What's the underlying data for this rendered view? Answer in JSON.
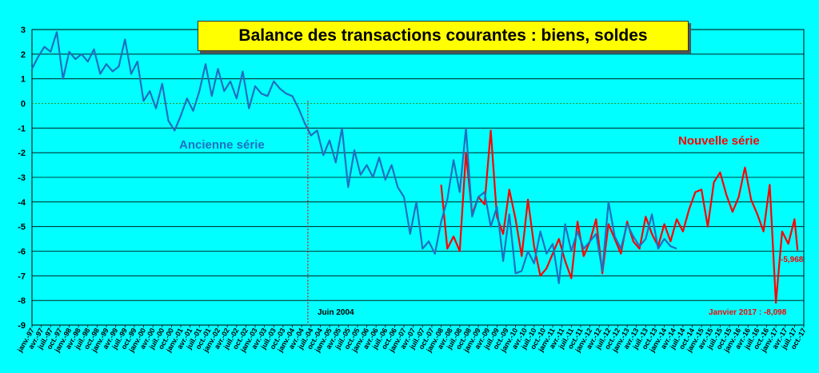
{
  "chart_data": {
    "type": "line",
    "title": "Balance des transactions courantes : biens, soldes",
    "ylim": [
      -9,
      3
    ],
    "yticks": [
      3,
      2,
      1,
      0,
      -1,
      -2,
      -3,
      -4,
      -5,
      -6,
      -7,
      -8,
      -9
    ],
    "x_start": "1997-01",
    "x_end": "2017-10",
    "x_tick_labels": [
      "janv.-97",
      "avr.-97",
      "juil.-97",
      "oct.-97",
      "janv.-98",
      "avr.-98",
      "juil.-98",
      "oct.-98",
      "janv.-99",
      "avr.-99",
      "juil.-99",
      "oct.-99",
      "janv.-00",
      "avr.-00",
      "juil.-00",
      "oct.-00",
      "janv.-01",
      "avr.-01",
      "juil.-01",
      "oct.-01",
      "janv.-02",
      "avr.-02",
      "juil.-02",
      "oct.-02",
      "janv.-03",
      "avr.-03",
      "juil.-03",
      "oct.-03",
      "janv.-04",
      "avr.-04",
      "juil.-04",
      "oct.-04",
      "janv.-05",
      "avr.-05",
      "juil.-05",
      "oct.-05",
      "janv.-06",
      "avr.-06",
      "juil.-06",
      "oct.-06",
      "janv.-07",
      "avr.-07",
      "juil.-07",
      "oct.-07",
      "janv.-08",
      "avr.-08",
      "juil.-08",
      "oct.-08",
      "janv.-09",
      "avr.-09",
      "juil.-09",
      "oct.-09",
      "janv.-10",
      "avr.-10",
      "juil.-10",
      "oct.-10",
      "janv.-11",
      "avr.-11",
      "juil.-11",
      "oct.-11",
      "janv.-12",
      "avr.-12",
      "juil.-12",
      "oct.-12",
      "janv.-13",
      "avr.-13",
      "juil.-13",
      "oct.-13",
      "janv.-14",
      "avr.-14",
      "juil.-14",
      "oct.-14",
      "janv.-15",
      "avr.-15",
      "juil.-15",
      "oct.-15",
      "janv.-16",
      "avr.-16",
      "juil.-16",
      "oct.-16",
      "janv.-17",
      "avr.-17",
      "juil.-17",
      "oct.-17"
    ],
    "grid": "horizontal",
    "annotations": {
      "ancienne_serie": "Ancienne série",
      "nouvelle_serie": "Nouvelle série",
      "juin_2004": "Juin 2004",
      "janvier_2017": "Janvier 2017 : -8,098",
      "last_value": "-5,968"
    },
    "marker_date": "2004-06",
    "series": [
      {
        "name": "Ancienne série",
        "color": "#1f6fbf",
        "x": [
          "1997-01",
          "1997-03",
          "1997-05",
          "1997-07",
          "1997-09",
          "1997-11",
          "1998-01",
          "1998-03",
          "1998-05",
          "1998-07",
          "1998-09",
          "1998-11",
          "1999-01",
          "1999-03",
          "1999-05",
          "1999-07",
          "1999-09",
          "1999-11",
          "2000-01",
          "2000-03",
          "2000-05",
          "2000-07",
          "2000-09",
          "2000-11",
          "2001-01",
          "2001-03",
          "2001-05",
          "2001-07",
          "2001-09",
          "2001-11",
          "2002-01",
          "2002-03",
          "2002-05",
          "2002-07",
          "2002-09",
          "2002-11",
          "2003-01",
          "2003-03",
          "2003-05",
          "2003-07",
          "2003-09",
          "2003-11",
          "2004-01",
          "2004-03",
          "2004-05",
          "2004-07",
          "2004-09",
          "2004-11",
          "2005-01",
          "2005-03",
          "2005-05",
          "2005-07",
          "2005-09",
          "2005-11",
          "2006-01",
          "2006-03",
          "2006-05",
          "2006-07",
          "2006-09",
          "2006-11",
          "2007-01",
          "2007-03",
          "2007-05",
          "2007-07",
          "2007-09",
          "2007-11",
          "2008-01",
          "2008-03",
          "2008-05",
          "2008-07",
          "2008-09",
          "2008-11",
          "2009-01",
          "2009-03",
          "2009-05",
          "2009-07",
          "2009-09",
          "2009-11",
          "2010-01",
          "2010-03",
          "2010-05",
          "2010-07",
          "2010-09",
          "2010-11",
          "2011-01",
          "2011-03",
          "2011-05",
          "2011-07",
          "2011-09",
          "2011-11",
          "2012-01",
          "2012-03",
          "2012-05",
          "2012-07",
          "2012-09",
          "2012-11",
          "2013-01",
          "2013-03",
          "2013-05",
          "2013-07",
          "2013-09",
          "2013-11",
          "2014-01",
          "2014-03",
          "2014-05"
        ],
        "values": [
          1.4,
          1.9,
          2.3,
          2.1,
          2.9,
          1.0,
          2.1,
          1.8,
          2.0,
          1.7,
          2.2,
          1.2,
          1.6,
          1.3,
          1.5,
          2.6,
          1.2,
          1.7,
          0.1,
          0.5,
          -0.2,
          0.8,
          -0.7,
          -1.1,
          -0.5,
          0.2,
          -0.3,
          0.5,
          1.6,
          0.3,
          1.4,
          0.5,
          0.9,
          0.2,
          1.3,
          -0.2,
          0.7,
          0.4,
          0.3,
          0.9,
          0.6,
          0.4,
          0.3,
          -0.2,
          -0.8,
          -1.3,
          -1.1,
          -2.1,
          -1.5,
          -2.4,
          -1.0,
          -3.4,
          -1.9,
          -2.9,
          -2.5,
          -3.0,
          -2.2,
          -3.1,
          -2.5,
          -3.4,
          -3.8,
          -5.3,
          -4.0,
          -5.9,
          -5.6,
          -6.1,
          -4.8,
          -3.9,
          -2.3,
          -3.6,
          -1.0,
          -4.6,
          -3.8,
          -3.6,
          -5.0,
          -4.2,
          -6.4,
          -4.5,
          -6.9,
          -6.8,
          -6.0,
          -6.5,
          -5.2,
          -6.1,
          -5.7,
          -7.3,
          -4.9,
          -6.0,
          -5.2,
          -5.9,
          -5.6,
          -5.3,
          -6.8,
          -4.0,
          -5.4,
          -5.9,
          -4.9,
          -5.4,
          -5.8,
          -5.5,
          -4.5,
          -5.9,
          -5.5,
          -5.8,
          -5.9
        ]
      },
      {
        "name": "Nouvelle série",
        "color": "#ff0000",
        "x": [
          "2008-01",
          "2008-03",
          "2008-05",
          "2008-07",
          "2008-09",
          "2008-11",
          "2009-01",
          "2009-03",
          "2009-05",
          "2009-07",
          "2009-09",
          "2009-11",
          "2010-01",
          "2010-03",
          "2010-05",
          "2010-07",
          "2010-09",
          "2010-11",
          "2011-01",
          "2011-03",
          "2011-05",
          "2011-07",
          "2011-09",
          "2011-11",
          "2012-01",
          "2012-03",
          "2012-05",
          "2012-07",
          "2012-09",
          "2012-11",
          "2013-01",
          "2013-03",
          "2013-05",
          "2013-07",
          "2013-09",
          "2013-11",
          "2014-01",
          "2014-03",
          "2014-05",
          "2014-07",
          "2014-09",
          "2014-11",
          "2015-01",
          "2015-03",
          "2015-05",
          "2015-07",
          "2015-09",
          "2015-11",
          "2016-01",
          "2016-03",
          "2016-05",
          "2016-07",
          "2016-09",
          "2016-11",
          "2017-01",
          "2017-03",
          "2017-05",
          "2017-07",
          "2017-08"
        ],
        "values": [
          -3.3,
          -5.9,
          -5.4,
          -6.0,
          -2.0,
          -4.5,
          -3.8,
          -4.1,
          -1.1,
          -4.6,
          -5.3,
          -3.5,
          -4.7,
          -6.2,
          -3.9,
          -5.8,
          -7.0,
          -6.7,
          -6.1,
          -5.5,
          -6.4,
          -7.1,
          -4.8,
          -6.2,
          -5.6,
          -4.7,
          -6.9,
          -4.9,
          -5.5,
          -6.1,
          -4.8,
          -5.6,
          -5.9,
          -4.6,
          -5.3,
          -5.8,
          -4.9,
          -5.6,
          -4.7,
          -5.2,
          -4.3,
          -3.6,
          -3.5,
          -5.0,
          -3.2,
          -2.8,
          -3.7,
          -4.4,
          -3.8,
          -2.6,
          -3.9,
          -4.5,
          -5.2,
          -3.3,
          -8.098,
          -5.2,
          -5.7,
          -4.7,
          -5.968
        ]
      }
    ]
  }
}
